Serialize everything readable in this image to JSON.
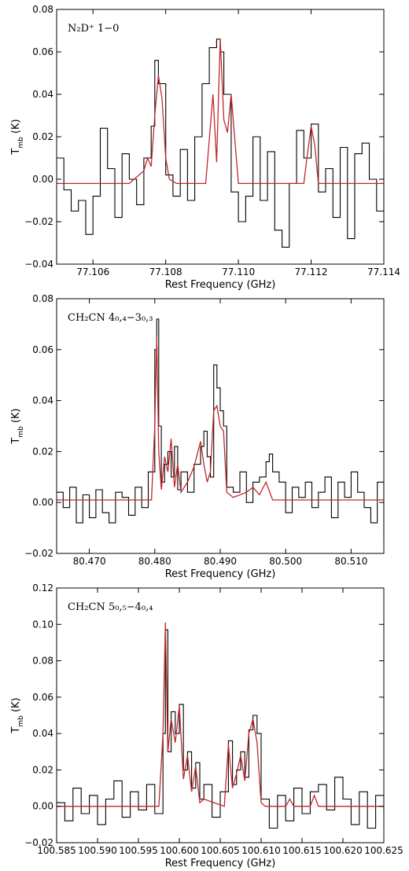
{
  "chart_data": [
    {
      "type": "line",
      "title": "N₂D⁺ 1−0",
      "xlabel": "Rest Frequency (GHz)",
      "ylabel": "T_mb (K)",
      "xlim": [
        77.105,
        77.114
      ],
      "ylim": [
        -0.04,
        0.08
      ],
      "xticks": [
        "77.106",
        "77.108",
        "77.110",
        "77.112",
        "77.114"
      ],
      "yticks": [
        "−0.04",
        "−0.02",
        "0.00",
        "0.02",
        "0.04",
        "0.06",
        "0.08"
      ],
      "grid": false,
      "series": [
        {
          "role": "observed",
          "color": "#000000",
          "style": "steps",
          "x": [
            77.105,
            77.1052,
            77.1054,
            77.1056,
            77.1058,
            77.106,
            77.1062,
            77.1064,
            77.1066,
            77.1068,
            77.107,
            77.1072,
            77.1074,
            77.1076,
            77.1077,
            77.1078,
            77.108,
            77.1082,
            77.1084,
            77.1086,
            77.1088,
            77.109,
            77.1092,
            77.1094,
            77.1095,
            77.1096,
            77.1098,
            77.11,
            77.1102,
            77.1104,
            77.1106,
            77.1108,
            77.111,
            77.1112,
            77.1114,
            77.1116,
            77.1118,
            77.112,
            77.1122,
            77.1124,
            77.1126,
            77.1128,
            77.113,
            77.1132,
            77.1134,
            77.1136,
            77.1138,
            77.114
          ],
          "y": [
            0.01,
            -0.005,
            -0.015,
            -0.01,
            -0.026,
            -0.008,
            0.024,
            0.005,
            -0.018,
            0.012,
            0.0,
            -0.012,
            0.01,
            0.025,
            0.056,
            0.045,
            0.002,
            -0.008,
            0.014,
            -0.01,
            0.02,
            0.045,
            0.062,
            0.066,
            0.06,
            0.04,
            -0.006,
            -0.02,
            -0.008,
            0.02,
            -0.01,
            0.013,
            -0.024,
            -0.032,
            -0.002,
            0.023,
            0.01,
            0.026,
            -0.006,
            0.005,
            -0.018,
            0.015,
            -0.028,
            0.012,
            0.017,
            0.0,
            -0.015,
            0.012
          ]
        },
        {
          "role": "model",
          "color": "#c0282d",
          "style": "line",
          "x": [
            77.105,
            77.107,
            77.1074,
            77.1075,
            77.1076,
            77.1077,
            77.1078,
            77.1079,
            77.108,
            77.1081,
            77.1083,
            77.1091,
            77.1093,
            77.1094,
            77.1095,
            77.1096,
            77.1097,
            77.1098,
            77.11,
            77.1118,
            77.1119,
            77.112,
            77.1121,
            77.1122,
            77.114
          ],
          "y": [
            -0.002,
            -0.002,
            0.004,
            0.01,
            0.006,
            0.03,
            0.049,
            0.038,
            0.01,
            0.0,
            -0.002,
            -0.002,
            0.04,
            0.008,
            0.066,
            0.028,
            0.022,
            0.04,
            -0.002,
            -0.002,
            0.012,
            0.025,
            0.016,
            -0.002,
            -0.002
          ]
        }
      ]
    },
    {
      "type": "line",
      "title": "CH₂CN 4₀,₄−3₀,₃",
      "xlabel": "Rest Frequency (GHz)",
      "ylabel": "T_mb (K)",
      "xlim": [
        80.465,
        80.515
      ],
      "ylim": [
        -0.02,
        0.08
      ],
      "xticks": [
        "80.470",
        "80.480",
        "80.490",
        "80.500",
        "80.510"
      ],
      "yticks": [
        "−0.02",
        "0.00",
        "0.02",
        "0.04",
        "0.06",
        "0.08"
      ],
      "grid": false,
      "series": [
        {
          "role": "observed",
          "color": "#000000",
          "style": "steps",
          "x": [
            80.465,
            80.466,
            80.467,
            80.468,
            80.469,
            80.47,
            80.471,
            80.472,
            80.473,
            80.474,
            80.475,
            80.476,
            80.477,
            80.478,
            80.479,
            80.48,
            80.4803,
            80.4806,
            80.481,
            80.4815,
            80.482,
            80.4825,
            80.483,
            80.4835,
            80.484,
            80.485,
            80.486,
            80.487,
            80.4875,
            80.488,
            80.4885,
            80.489,
            80.4895,
            80.49,
            80.4905,
            80.491,
            80.492,
            80.493,
            80.494,
            80.495,
            80.496,
            80.497,
            80.4975,
            80.498,
            80.499,
            80.5,
            80.501,
            80.502,
            80.503,
            80.504,
            80.505,
            80.506,
            80.507,
            80.508,
            80.509,
            80.51,
            80.511,
            80.512,
            80.513,
            80.514,
            80.515
          ],
          "y": [
            0.004,
            -0.002,
            0.006,
            -0.008,
            0.003,
            -0.006,
            0.005,
            -0.004,
            -0.008,
            0.004,
            0.002,
            -0.005,
            0.006,
            -0.002,
            0.012,
            0.06,
            0.072,
            0.03,
            0.008,
            0.015,
            0.02,
            0.01,
            0.022,
            0.005,
            0.012,
            0.004,
            0.015,
            0.022,
            0.028,
            0.018,
            0.01,
            0.054,
            0.045,
            0.036,
            0.03,
            0.006,
            0.004,
            0.012,
            0.0,
            0.008,
            0.01,
            0.016,
            0.019,
            0.012,
            0.008,
            -0.004,
            0.006,
            0.002,
            0.008,
            -0.002,
            0.004,
            0.01,
            -0.006,
            0.008,
            0.002,
            0.012,
            0.004,
            -0.002,
            -0.008,
            0.008,
            -0.014
          ]
        },
        {
          "role": "model",
          "color": "#c0282d",
          "style": "line",
          "x": [
            80.465,
            80.4795,
            80.48,
            80.4803,
            80.4806,
            80.481,
            80.4815,
            80.482,
            80.4825,
            80.483,
            80.4835,
            80.484,
            80.485,
            80.486,
            80.487,
            80.4875,
            80.488,
            80.4885,
            80.489,
            80.4895,
            80.49,
            80.4905,
            80.491,
            80.492,
            80.494,
            80.495,
            80.496,
            80.497,
            80.498,
            80.515
          ],
          "y": [
            0.001,
            0.001,
            0.03,
            0.065,
            0.02,
            0.005,
            0.018,
            0.012,
            0.025,
            0.006,
            0.015,
            0.004,
            0.008,
            0.014,
            0.024,
            0.015,
            0.008,
            0.012,
            0.036,
            0.038,
            0.03,
            0.028,
            0.004,
            0.002,
            0.004,
            0.006,
            0.003,
            0.008,
            0.001,
            0.001
          ]
        }
      ]
    },
    {
      "type": "line",
      "title": "CH₂CN 5₀,₅−4₀,₄",
      "xlabel": "Rest Frequency (GHz)",
      "ylabel": "T_mb (K)",
      "xlim": [
        100.585,
        100.625
      ],
      "ylim": [
        -0.02,
        0.12
      ],
      "xticks": [
        "100.585",
        "100.590",
        "100.595",
        "100.600",
        "100.605",
        "100.610",
        "100.615",
        "100.620",
        "100.625"
      ],
      "yticks": [
        "−0.02",
        "0.00",
        "0.02",
        "0.04",
        "0.06",
        "0.08",
        "0.10",
        "0.12"
      ],
      "grid": false,
      "series": [
        {
          "role": "observed",
          "color": "#000000",
          "style": "steps",
          "x": [
            100.585,
            100.586,
            100.587,
            100.588,
            100.589,
            100.59,
            100.591,
            100.592,
            100.593,
            100.594,
            100.595,
            100.596,
            100.597,
            100.598,
            100.5983,
            100.5986,
            100.599,
            100.5995,
            100.6,
            100.6005,
            100.601,
            100.6015,
            100.602,
            100.6025,
            100.603,
            100.604,
            100.605,
            100.606,
            100.6065,
            100.607,
            100.6075,
            100.608,
            100.6085,
            100.609,
            100.6095,
            100.61,
            100.611,
            100.612,
            100.613,
            100.614,
            100.615,
            100.616,
            100.617,
            100.618,
            100.619,
            100.62,
            100.621,
            100.622,
            100.623,
            100.624,
            100.625
          ],
          "y": [
            0.002,
            -0.008,
            0.01,
            -0.004,
            0.006,
            -0.01,
            0.004,
            0.014,
            -0.006,
            0.008,
            -0.002,
            0.012,
            -0.004,
            0.04,
            0.097,
            0.03,
            0.052,
            0.04,
            0.056,
            0.02,
            0.03,
            0.01,
            0.024,
            0.004,
            0.012,
            -0.006,
            0.008,
            0.036,
            0.012,
            0.02,
            0.03,
            0.016,
            0.042,
            0.05,
            0.04,
            0.004,
            -0.012,
            0.006,
            -0.008,
            0.01,
            -0.004,
            0.008,
            0.012,
            -0.002,
            0.016,
            0.004,
            -0.01,
            0.008,
            -0.012,
            0.006,
            -0.004
          ]
        },
        {
          "role": "model",
          "color": "#c0282d",
          "style": "line",
          "x": [
            100.585,
            100.5975,
            100.598,
            100.5983,
            100.5986,
            100.599,
            100.5995,
            100.6,
            100.6005,
            100.601,
            100.6015,
            100.602,
            100.6025,
            100.603,
            100.6055,
            100.606,
            100.6065,
            100.607,
            100.6075,
            100.608,
            100.6085,
            100.609,
            100.6095,
            100.61,
            100.6105,
            100.613,
            100.6135,
            100.614,
            100.616,
            100.6165,
            100.617,
            100.625
          ],
          "y": [
            0.0,
            0.0,
            0.04,
            0.101,
            0.03,
            0.048,
            0.035,
            0.055,
            0.015,
            0.028,
            0.008,
            0.022,
            0.002,
            0.004,
            0.0,
            0.034,
            0.01,
            0.018,
            0.028,
            0.014,
            0.04,
            0.048,
            0.035,
            0.002,
            0.0,
            0.0,
            0.004,
            0.0,
            0.0,
            0.006,
            0.0,
            0.0
          ]
        }
      ]
    }
  ]
}
